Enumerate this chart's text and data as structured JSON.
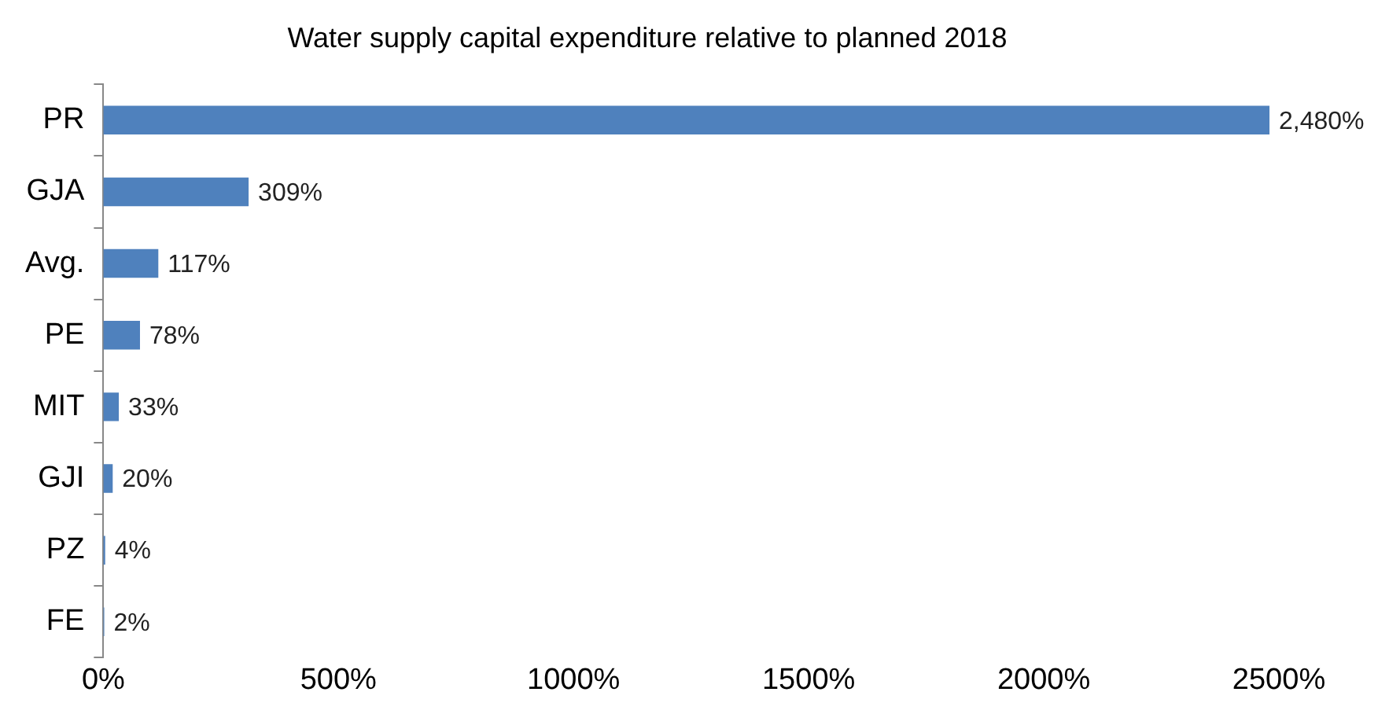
{
  "chart_data": {
    "type": "bar",
    "orientation": "horizontal",
    "title": "Water supply capital expenditure relative to planned 2018",
    "categories": [
      "PR",
      "GJA",
      "Avg.",
      "PE",
      "MIT",
      "GJI",
      "PZ",
      "FE"
    ],
    "values": [
      2480,
      309,
      117,
      78,
      33,
      20,
      4,
      2
    ],
    "value_labels": [
      "2,480%",
      "309%",
      "117%",
      "78%",
      "33%",
      "20%",
      "4%",
      "2%"
    ],
    "color": "#4f81bd",
    "xlim": [
      0,
      2500
    ],
    "xticks": [
      {
        "value": 0,
        "label": "0%"
      },
      {
        "value": 500,
        "label": "500%"
      },
      {
        "value": 1000,
        "label": "1000%"
      },
      {
        "value": 1500,
        "label": "1500%"
      },
      {
        "value": 2000,
        "label": "2000%"
      },
      {
        "value": 2500,
        "label": "2500%"
      }
    ],
    "grid": false,
    "legend": false
  }
}
